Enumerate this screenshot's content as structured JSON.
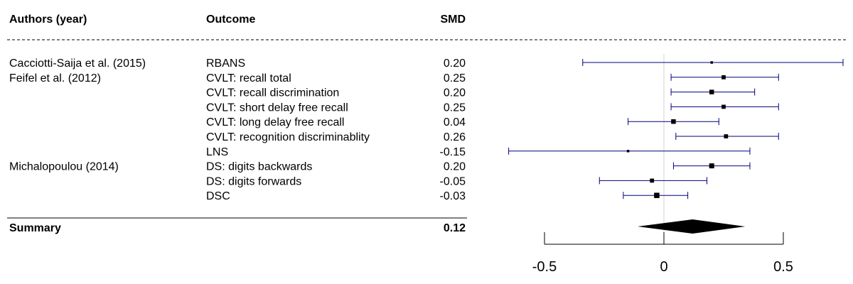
{
  "chart_data": {
    "type": "forest",
    "columns": {
      "author": "Authors (year)",
      "outcome": "Outcome",
      "smd": "SMD"
    },
    "rows": [
      {
        "author": "Cacciotti-Saija et al. (2015)",
        "outcome": "RBANS",
        "smd_label": "0.20",
        "smd": 0.2,
        "ci": [
          -0.34,
          0.75
        ],
        "weight": 0.3
      },
      {
        "author": "Feifel et al. (2012)",
        "outcome": "CVLT: recall total",
        "smd_label": "0.25",
        "smd": 0.25,
        "ci": [
          0.03,
          0.48
        ],
        "weight": 0.75
      },
      {
        "author": "",
        "outcome": "CVLT: recall discrimination",
        "smd_label": "0.20",
        "smd": 0.2,
        "ci": [
          0.03,
          0.38
        ],
        "weight": 0.9
      },
      {
        "author": "",
        "outcome": "CVLT: short delay free recall",
        "smd_label": "0.25",
        "smd": 0.25,
        "ci": [
          0.03,
          0.48
        ],
        "weight": 0.75
      },
      {
        "author": "",
        "outcome": "CVLT: long delay free recall",
        "smd_label": "0.04",
        "smd": 0.04,
        "ci": [
          -0.15,
          0.23
        ],
        "weight": 0.9
      },
      {
        "author": "",
        "outcome": "CVLT: recognition discriminablity",
        "smd_label": "0.26",
        "smd": 0.26,
        "ci": [
          0.05,
          0.48
        ],
        "weight": 0.75
      },
      {
        "author": "",
        "outcome": "LNS",
        "smd_label": "-0.15",
        "smd": -0.15,
        "ci": [
          -0.65,
          0.36
        ],
        "weight": 0.3
      },
      {
        "author": "Michalopoulou (2014)",
        "outcome": "DS: digits backwards",
        "smd_label": "0.20",
        "smd": 0.2,
        "ci": [
          0.04,
          0.36
        ],
        "weight": 1.0
      },
      {
        "author": "",
        "outcome": "DS: digits forwards",
        "smd_label": "-0.05",
        "smd": -0.05,
        "ci": [
          -0.27,
          0.18
        ],
        "weight": 0.75
      },
      {
        "author": "",
        "outcome": "DSC",
        "smd_label": "-0.03",
        "smd": -0.03,
        "ci": [
          -0.17,
          0.1
        ],
        "weight": 1.1
      }
    ],
    "summary": {
      "label": "Summary",
      "smd_label": "0.12",
      "smd": 0.12,
      "ci": [
        -0.11,
        0.34
      ]
    },
    "x_ticks": [
      -0.5,
      0,
      0.5
    ],
    "x_tick_labels": [
      "-0.5",
      "0",
      "0.5"
    ],
    "xlim": [
      -0.5,
      0.5
    ],
    "null_line": 0,
    "colors": {
      "ci_line": "#00007f",
      "point": "#000000",
      "null_line": "#d3d3d3"
    }
  }
}
